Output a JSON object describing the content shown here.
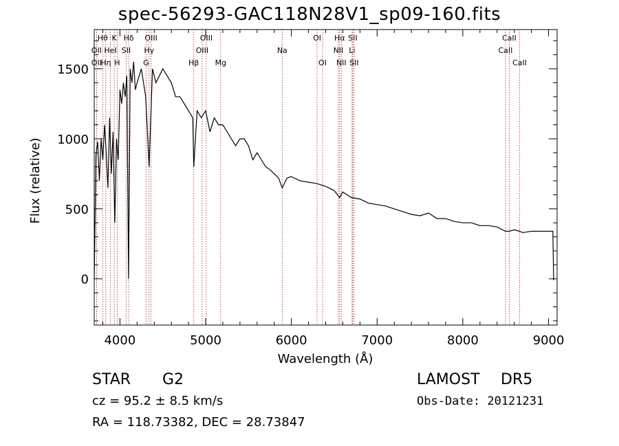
{
  "title": "spec-56293-GAC118N28V1_sp09-160.fits",
  "info": {
    "class": "STAR",
    "subclass": "G2",
    "survey": "LAMOST",
    "release": "DR5",
    "cz": "cz = 95.2 ± 8.5 km/s",
    "obs_date": "Obs-Date: 20121231",
    "coords": "RA = 118.73382, DEC =  28.73847"
  },
  "colors": {
    "line": "#000000",
    "marker": "#b22222",
    "background": "#ffffff"
  },
  "chart_data": {
    "type": "line",
    "title": "spec-56293-GAC118N28V1_sp09-160.fits",
    "xlabel": "Wavelength (Å)",
    "ylabel": "Flux (relative)",
    "xlim": [
      3700,
      9100
    ],
    "ylim": [
      -330,
      1780
    ],
    "xticks": [
      4000,
      5000,
      6000,
      7000,
      8000,
      9000
    ],
    "xtick_labels": [
      "4000",
      "5000",
      "6000",
      "7000",
      "8000",
      "9000"
    ],
    "yticks": [
      0,
      500,
      1000,
      1500
    ],
    "ytick_labels": [
      "0",
      "500",
      "1000",
      "1500"
    ],
    "grid": false,
    "legend": "none",
    "series": [
      {
        "x": [
          3700,
          3720,
          3740,
          3760,
          3780,
          3800,
          3820,
          3840,
          3860,
          3880,
          3900,
          3920,
          3940,
          3960,
          3980,
          4000,
          4020,
          4040,
          4060,
          4080,
          4100,
          4120,
          4140,
          4160,
          4180,
          4200,
          4250,
          4300,
          4340,
          4380,
          4420,
          4460,
          4500,
          4550,
          4600,
          4650,
          4700,
          4750,
          4800,
          4850,
          4861,
          4900,
          4950,
          5000,
          5050,
          5100,
          5150,
          5200,
          5250,
          5300,
          5350,
          5400,
          5450,
          5500,
          5550,
          5600,
          5650,
          5700,
          5750,
          5800,
          5850,
          5893,
          5950,
          6000,
          6100,
          6200,
          6300,
          6400,
          6500,
          6563,
          6600,
          6650,
          6700,
          6800,
          6900,
          7000,
          7100,
          7200,
          7300,
          7400,
          7500,
          7600,
          7700,
          7800,
          7900,
          8000,
          8100,
          8200,
          8300,
          8400,
          8498,
          8542,
          8600,
          8662,
          8700,
          8800,
          8900,
          9000,
          9050,
          9060
        ],
        "y": [
          0,
          880,
          980,
          700,
          1000,
          850,
          1100,
          900,
          650,
          1150,
          750,
          1050,
          400,
          1000,
          850,
          1350,
          1250,
          1400,
          1300,
          1450,
          0,
          1500,
          1400,
          1550,
          1350,
          1400,
          1500,
          1300,
          800,
          1500,
          1400,
          1450,
          1500,
          1450,
          1400,
          1300,
          1300,
          1250,
          1200,
          1150,
          800,
          1200,
          1150,
          1200,
          1050,
          1150,
          1100,
          1100,
          1050,
          1000,
          950,
          1000,
          1000,
          950,
          850,
          900,
          850,
          800,
          780,
          750,
          720,
          650,
          720,
          730,
          700,
          690,
          680,
          660,
          630,
          580,
          620,
          600,
          580,
          570,
          540,
          530,
          520,
          500,
          480,
          460,
          450,
          470,
          430,
          430,
          410,
          400,
          400,
          380,
          380,
          370,
          340,
          340,
          350,
          340,
          330,
          340,
          340,
          340,
          340,
          -10
        ]
      }
    ],
    "markers": [
      {
        "label": "OII",
        "wavelength": 3727,
        "row": 2
      },
      {
        "label": "Hθ",
        "wavelength": 3798,
        "row": 1
      },
      {
        "label": "OII",
        "wavelength": 3727,
        "row": 3
      },
      {
        "label": "Hη",
        "wavelength": 3835,
        "row": 3
      },
      {
        "label": "HeI",
        "wavelength": 3889,
        "row": 2
      },
      {
        "label": "K",
        "wavelength": 3934,
        "row": 1
      },
      {
        "label": "H",
        "wavelength": 3968,
        "row": 3
      },
      {
        "label": "Hδ",
        "wavelength": 4102,
        "row": 1
      },
      {
        "label": "SII",
        "wavelength": 4072,
        "row": 2
      },
      {
        "label": "OIII",
        "wavelength": 4363,
        "row": 1
      },
      {
        "label": "Hγ",
        "wavelength": 4340,
        "row": 2
      },
      {
        "label": "G",
        "wavelength": 4305,
        "row": 3
      },
      {
        "label": "OIII",
        "wavelength": 5007,
        "row": 1
      },
      {
        "label": "OIII",
        "wavelength": 4959,
        "row": 2
      },
      {
        "label": "Hβ",
        "wavelength": 4861,
        "row": 3
      },
      {
        "label": "Mg",
        "wavelength": 5175,
        "row": 3
      },
      {
        "label": "Na",
        "wavelength": 5893,
        "row": 2
      },
      {
        "label": "OI",
        "wavelength": 6300,
        "row": 1
      },
      {
        "label": "OI",
        "wavelength": 6364,
        "row": 3
      },
      {
        "label": "Hα",
        "wavelength": 6563,
        "row": 1
      },
      {
        "label": "NII",
        "wavelength": 6548,
        "row": 2
      },
      {
        "label": "NII",
        "wavelength": 6583,
        "row": 3
      },
      {
        "label": "SII",
        "wavelength": 6716,
        "row": 1
      },
      {
        "label": "Li",
        "wavelength": 6708,
        "row": 2
      },
      {
        "label": "SII",
        "wavelength": 6731,
        "row": 3
      },
      {
        "label": "CaII",
        "wavelength": 8542,
        "row": 1
      },
      {
        "label": "CaII",
        "wavelength": 8498,
        "row": 2
      },
      {
        "label": "CaII",
        "wavelength": 8662,
        "row": 3
      }
    ]
  }
}
